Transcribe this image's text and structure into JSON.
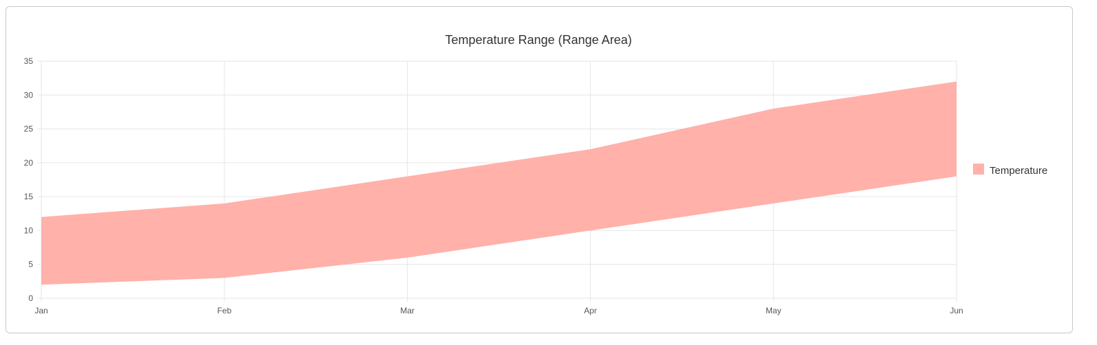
{
  "chart_data": {
    "type": "area",
    "title": "Temperature Range (Range Area)",
    "categories": [
      "Jan",
      "Feb",
      "Mar",
      "Apr",
      "May",
      "Jun"
    ],
    "series": [
      {
        "name": "Temperature",
        "low": [
          2,
          3,
          6,
          10,
          14,
          18
        ],
        "high": [
          12,
          14,
          18,
          22,
          28,
          32
        ],
        "color": "#ffb1aa"
      }
    ],
    "ylim": [
      0,
      35
    ],
    "yticks": [
      "0",
      "5",
      "10",
      "15",
      "20",
      "25",
      "30",
      "35"
    ],
    "grid": true,
    "legend_position": "right"
  }
}
